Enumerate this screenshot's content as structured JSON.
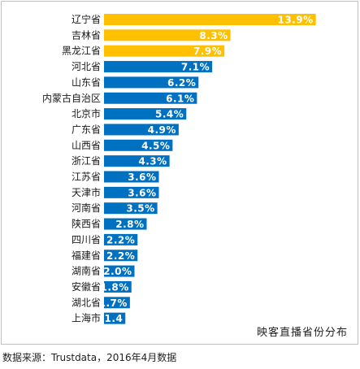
{
  "chart_data": {
    "type": "bar",
    "orientation": "horizontal",
    "title": "映客直播省份分布",
    "categories": [
      "辽宁省",
      "吉林省",
      "黑龙江省",
      "河北省",
      "山东省",
      "内蒙古自治区",
      "北京市",
      "广东省",
      "山西省",
      "浙江省",
      "江苏省",
      "天津市",
      "河南省",
      "陕西省",
      "四川省",
      "福建省",
      "湖南省",
      "安徽省",
      "湖北省",
      "上海市"
    ],
    "values": [
      13.9,
      8.3,
      7.9,
      7.1,
      6.2,
      6.1,
      5.4,
      4.9,
      4.5,
      4.3,
      3.6,
      3.6,
      3.5,
      2.8,
      2.2,
      2.2,
      2.0,
      1.8,
      1.7,
      1.4
    ],
    "value_labels": [
      "13.9%",
      "8.3%",
      "7.9%",
      "7.1%",
      "6.2%",
      "6.1%",
      "5.4%",
      "4.9%",
      "4.5%",
      "4.3%",
      "3.6%",
      "3.6%",
      "3.5%",
      "2.8%",
      "2.2%",
      "2.2%",
      "2.0%",
      "1.8%",
      "1.7%",
      "1.4"
    ],
    "highlight_count": 3,
    "colors": {
      "highlight": "#FFC000",
      "normal": "#0070C0",
      "label": "#FFFFFF"
    },
    "grid": false
  },
  "source_text": "数据来源：Trustdata，2016年4月数据"
}
